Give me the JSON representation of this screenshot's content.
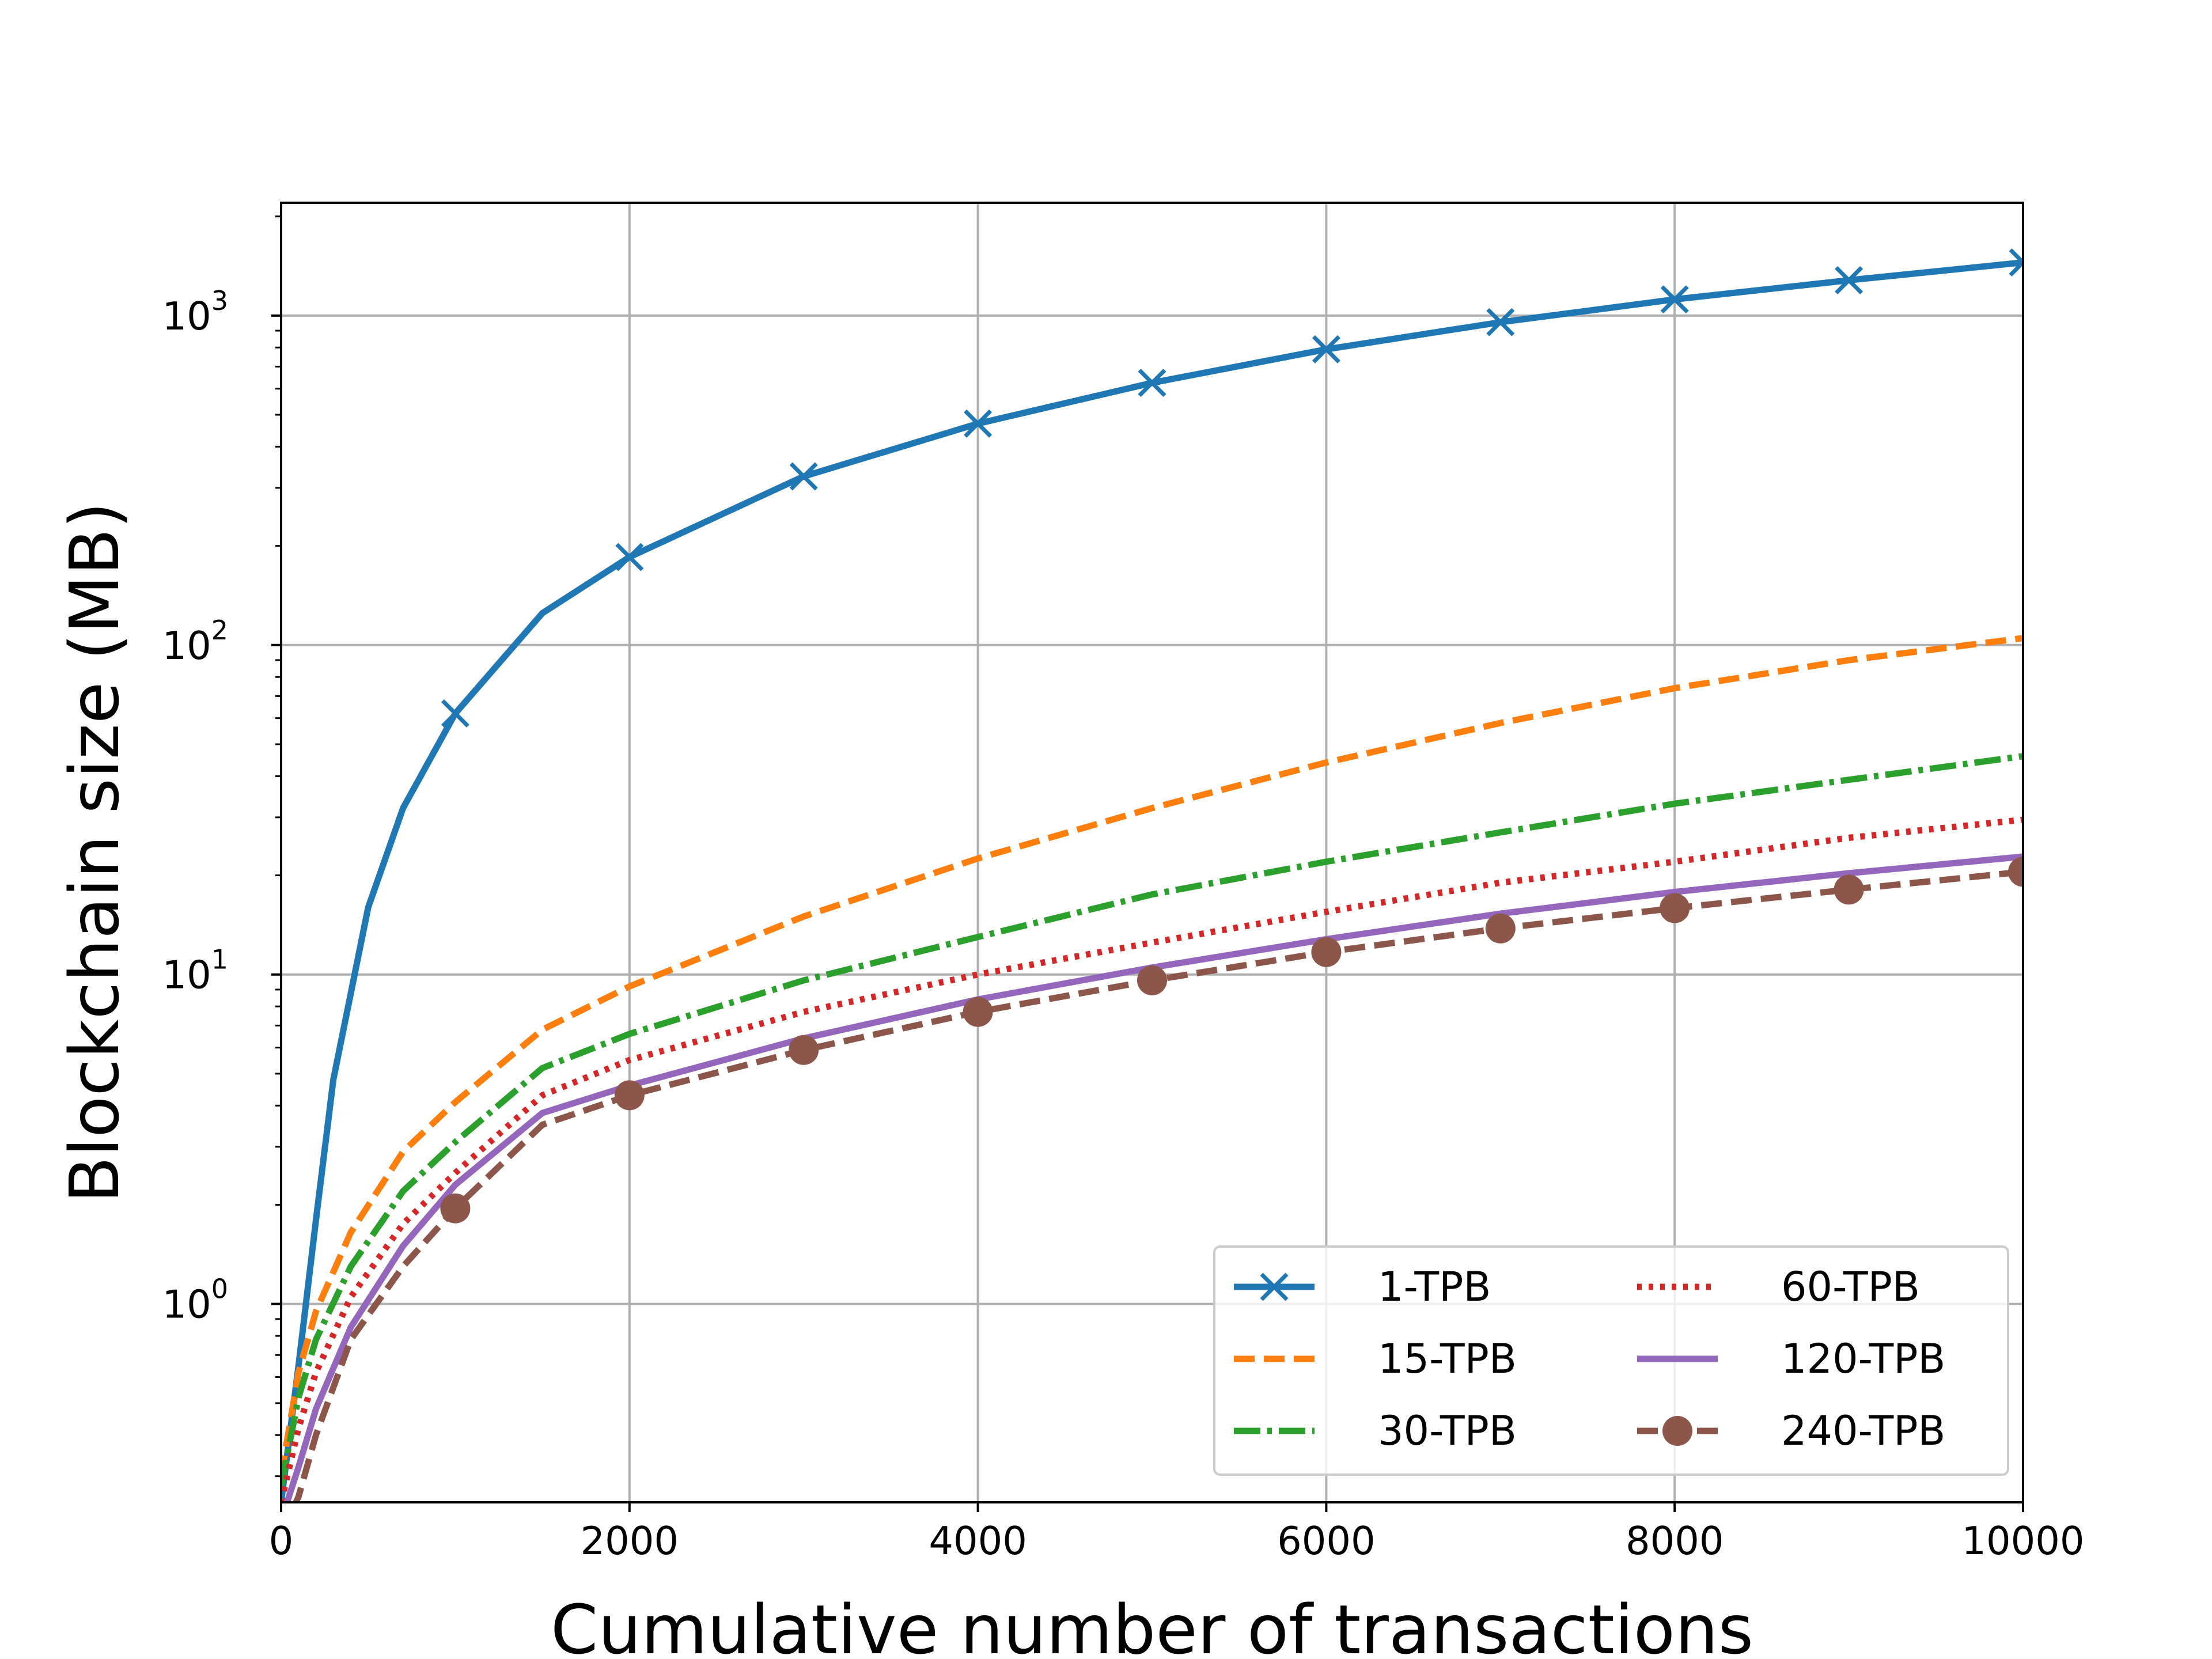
{
  "chart_data": {
    "type": "line",
    "xlabel": "Cumulative number of transactions",
    "ylabel": "Blockchain size (MB)",
    "xlim": [
      0,
      10000
    ],
    "ylim": [
      0.25,
      2200
    ],
    "yscale": "log",
    "grid": true,
    "legend_placement": "lower-right",
    "x_ticks": [
      0,
      2000,
      4000,
      6000,
      8000,
      10000
    ],
    "y_ticks": [
      {
        "value": 1,
        "base": "10",
        "exp": "0"
      },
      {
        "value": 10,
        "base": "10",
        "exp": "1"
      },
      {
        "value": 100,
        "base": "10",
        "exp": "2"
      },
      {
        "value": 1000,
        "base": "10",
        "exp": "3"
      }
    ],
    "series": [
      {
        "name": "1-TPB",
        "color": "#1f77b4",
        "style": "solid",
        "marker": "x",
        "x": [
          0,
          100,
          200,
          300,
          500,
          700,
          1000,
          1500,
          2000,
          3000,
          4000,
          5000,
          6000,
          7000,
          8000,
          9000,
          10000
        ],
        "y": [
          0.25,
          0.65,
          1.8,
          4.8,
          16,
          32,
          62,
          125,
          185,
          325,
          470,
          625,
          790,
          955,
          1120,
          1280,
          1450
        ]
      },
      {
        "name": "15-TPB",
        "color": "#ff7f0e",
        "style": "dashed",
        "marker": "none",
        "x": [
          0,
          100,
          200,
          400,
          700,
          1000,
          1500,
          2000,
          3000,
          4000,
          5000,
          6000,
          7000,
          8000,
          9000,
          10000
        ],
        "y": [
          0.3,
          0.62,
          0.95,
          1.65,
          2.9,
          4.1,
          6.8,
          9.2,
          15,
          22.5,
          32,
          44,
          58,
          74,
          90,
          105
        ]
      },
      {
        "name": "30-TPB",
        "color": "#2ca02c",
        "style": "dashdot",
        "marker": "none",
        "x": [
          0,
          100,
          200,
          400,
          700,
          1000,
          1500,
          2000,
          3000,
          4000,
          5000,
          6000,
          7000,
          8000,
          9000,
          10000
        ],
        "y": [
          0.28,
          0.52,
          0.78,
          1.3,
          2.2,
          3.1,
          5.2,
          6.6,
          9.6,
          13,
          17.5,
          22,
          27,
          33,
          39,
          46
        ]
      },
      {
        "name": "60-TPB",
        "color": "#d62728",
        "style": "dotted",
        "marker": "none",
        "x": [
          0,
          100,
          200,
          400,
          700,
          1000,
          1500,
          2000,
          3000,
          4000,
          5000,
          6000,
          7000,
          8000,
          9000,
          10000
        ],
        "y": [
          0.25,
          0.42,
          0.62,
          1.05,
          1.75,
          2.5,
          4.3,
          5.5,
          7.7,
          10,
          12.5,
          15.5,
          19,
          22,
          26,
          29.5
        ]
      },
      {
        "name": "120-TPB",
        "color": "#9467bd",
        "style": "solid",
        "marker": "none",
        "x": [
          0,
          100,
          200,
          400,
          700,
          1000,
          1500,
          2000,
          3000,
          4000,
          5000,
          6000,
          7000,
          8000,
          9000,
          10000
        ],
        "y": [
          0.22,
          0.32,
          0.48,
          0.85,
          1.5,
          2.3,
          3.8,
          4.6,
          6.4,
          8.4,
          10.5,
          12.8,
          15.3,
          17.8,
          20.3,
          22.8
        ]
      },
      {
        "name": "240-TPB",
        "color": "#8c564b",
        "style": "dashed",
        "marker": "circle",
        "x": [
          0,
          100,
          200,
          400,
          700,
          1000,
          1500,
          2000,
          3000,
          4000,
          5000,
          6000,
          7000,
          8000,
          9000,
          10000
        ],
        "y": [
          0.2,
          0.26,
          0.4,
          0.78,
          1.3,
          1.95,
          3.5,
          4.3,
          5.9,
          7.7,
          9.6,
          11.7,
          13.8,
          15.9,
          18.1,
          20.5
        ]
      }
    ]
  }
}
